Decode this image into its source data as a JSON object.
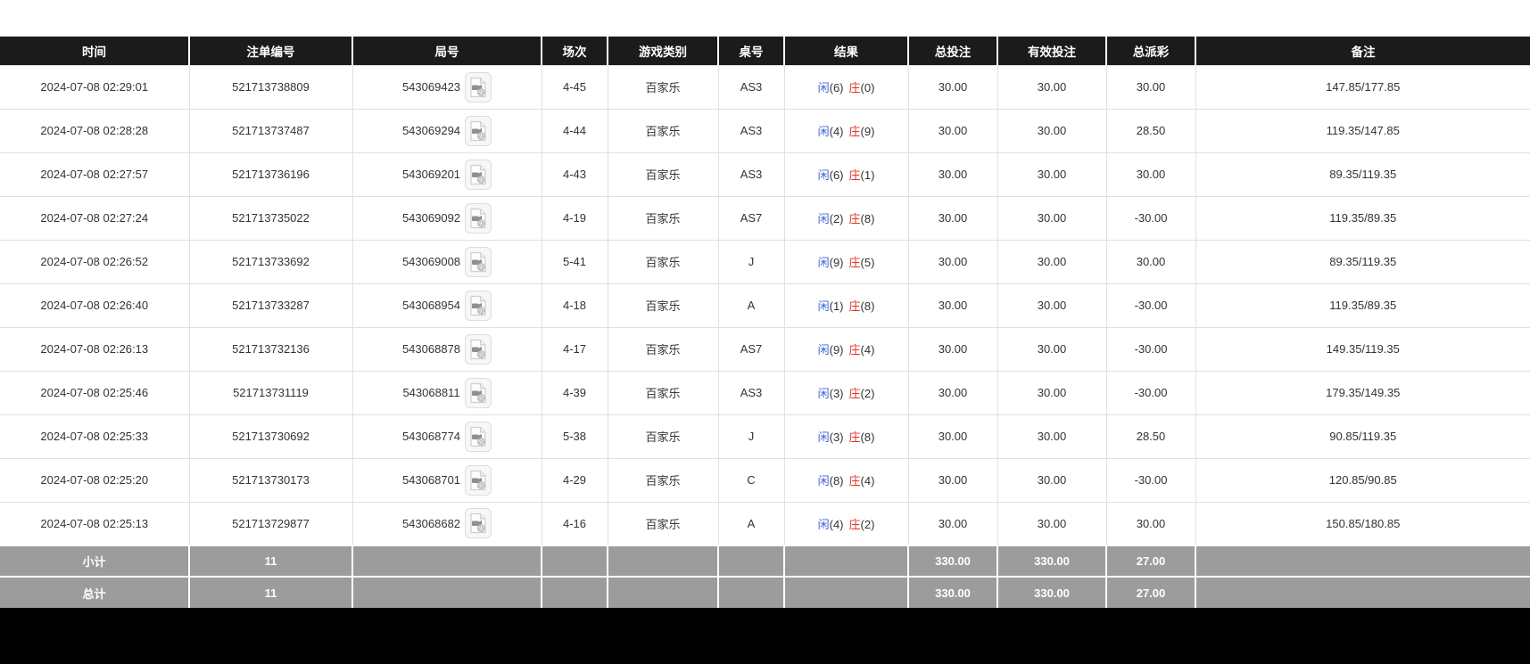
{
  "table": {
    "columns": [
      "时间",
      "注单编号",
      "局号",
      "场次",
      "游戏类别",
      "桌号",
      "结果",
      "总投注",
      "有效投注",
      "总派彩",
      "备注"
    ],
    "result_labels": {
      "player": "闲",
      "banker": "庄"
    },
    "icon_names": {
      "video": "video-replay-icon"
    },
    "rows": [
      {
        "time": "2024-07-08 02:29:01",
        "bet_id": "521713738809",
        "round_id": "543069423",
        "session": "4-45",
        "game": "百家乐",
        "table": "AS3",
        "result": {
          "player": "6",
          "banker": "0"
        },
        "total_bet": "30.00",
        "valid_bet": "30.00",
        "payout": "30.00",
        "remark": "147.85/177.85"
      },
      {
        "time": "2024-07-08 02:28:28",
        "bet_id": "521713737487",
        "round_id": "543069294",
        "session": "4-44",
        "game": "百家乐",
        "table": "AS3",
        "result": {
          "player": "4",
          "banker": "9"
        },
        "total_bet": "30.00",
        "valid_bet": "30.00",
        "payout": "28.50",
        "remark": "119.35/147.85"
      },
      {
        "time": "2024-07-08 02:27:57",
        "bet_id": "521713736196",
        "round_id": "543069201",
        "session": "4-43",
        "game": "百家乐",
        "table": "AS3",
        "result": {
          "player": "6",
          "banker": "1"
        },
        "total_bet": "30.00",
        "valid_bet": "30.00",
        "payout": "30.00",
        "remark": "89.35/119.35"
      },
      {
        "time": "2024-07-08 02:27:24",
        "bet_id": "521713735022",
        "round_id": "543069092",
        "session": "4-19",
        "game": "百家乐",
        "table": "AS7",
        "result": {
          "player": "2",
          "banker": "8"
        },
        "total_bet": "30.00",
        "valid_bet": "30.00",
        "payout": "-30.00",
        "remark": "119.35/89.35"
      },
      {
        "time": "2024-07-08 02:26:52",
        "bet_id": "521713733692",
        "round_id": "543069008",
        "session": "5-41",
        "game": "百家乐",
        "table": "J",
        "result": {
          "player": "9",
          "banker": "5"
        },
        "total_bet": "30.00",
        "valid_bet": "30.00",
        "payout": "30.00",
        "remark": "89.35/119.35"
      },
      {
        "time": "2024-07-08 02:26:40",
        "bet_id": "521713733287",
        "round_id": "543068954",
        "session": "4-18",
        "game": "百家乐",
        "table": "A",
        "result": {
          "player": "1",
          "banker": "8"
        },
        "total_bet": "30.00",
        "valid_bet": "30.00",
        "payout": "-30.00",
        "remark": "119.35/89.35"
      },
      {
        "time": "2024-07-08 02:26:13",
        "bet_id": "521713732136",
        "round_id": "543068878",
        "session": "4-17",
        "game": "百家乐",
        "table": "AS7",
        "result": {
          "player": "9",
          "banker": "4"
        },
        "total_bet": "30.00",
        "valid_bet": "30.00",
        "payout": "-30.00",
        "remark": "149.35/119.35"
      },
      {
        "time": "2024-07-08 02:25:46",
        "bet_id": "521713731119",
        "round_id": "543068811",
        "session": "4-39",
        "game": "百家乐",
        "table": "AS3",
        "result": {
          "player": "3",
          "banker": "2"
        },
        "total_bet": "30.00",
        "valid_bet": "30.00",
        "payout": "-30.00",
        "remark": "179.35/149.35"
      },
      {
        "time": "2024-07-08 02:25:33",
        "bet_id": "521713730692",
        "round_id": "543068774",
        "session": "5-38",
        "game": "百家乐",
        "table": "J",
        "result": {
          "player": "3",
          "banker": "8"
        },
        "total_bet": "30.00",
        "valid_bet": "30.00",
        "payout": "28.50",
        "remark": "90.85/119.35"
      },
      {
        "time": "2024-07-08 02:25:20",
        "bet_id": "521713730173",
        "round_id": "543068701",
        "session": "4-29",
        "game": "百家乐",
        "table": "C",
        "result": {
          "player": "8",
          "banker": "4"
        },
        "total_bet": "30.00",
        "valid_bet": "30.00",
        "payout": "-30.00",
        "remark": "120.85/90.85"
      },
      {
        "time": "2024-07-08 02:25:13",
        "bet_id": "521713729877",
        "round_id": "543068682",
        "session": "4-16",
        "game": "百家乐",
        "table": "A",
        "result": {
          "player": "4",
          "banker": "2"
        },
        "total_bet": "30.00",
        "valid_bet": "30.00",
        "payout": "30.00",
        "remark": "150.85/180.85"
      }
    ],
    "summary": [
      {
        "label": "小计",
        "count": "11",
        "total_bet": "330.00",
        "valid_bet": "330.00",
        "payout": "27.00"
      },
      {
        "label": "总计",
        "count": "11",
        "total_bet": "330.00",
        "valid_bet": "330.00",
        "payout": "27.00"
      }
    ]
  },
  "colors": {
    "header_bg": "#1b1b1b",
    "summary_bg": "#9c9c9c",
    "bet_amount_blue": "#2d7ff2",
    "player_blue": "#4063d8",
    "banker_red": "#e0342b",
    "negative_red": "#e0342b"
  }
}
